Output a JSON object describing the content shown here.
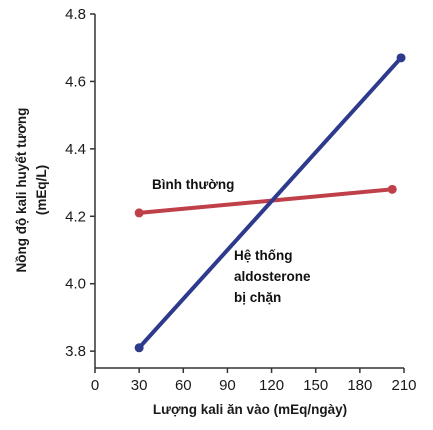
{
  "chart_data": {
    "type": "line",
    "xlabel": "Lượng kali ăn vào (mEq/ngày)",
    "ylabel_line1": "Nồng độ kali huyết tương",
    "ylabel_line2": "(mEq/L)",
    "x_ticks": [
      0,
      30,
      60,
      90,
      120,
      150,
      180,
      210
    ],
    "y_ticks": [
      3.8,
      4.0,
      4.2,
      4.4,
      4.6,
      4.8
    ],
    "y_tick_labels": [
      "3.8",
      "4.0",
      "4.2",
      "4.4",
      "4.6",
      "4.8"
    ],
    "xlim": [
      0,
      210
    ],
    "ylim": [
      3.75,
      4.8
    ],
    "grid": false,
    "series": [
      {
        "name": "Bình thường",
        "color": "#c0404a",
        "x": [
          30,
          202
        ],
        "y": [
          4.21,
          4.28
        ]
      },
      {
        "name": "Hệ thống aldosterone bị chặn",
        "color": "#2e3a8c",
        "x": [
          30,
          208
        ],
        "y": [
          3.81,
          4.67
        ]
      }
    ],
    "annotations": {
      "normal": "Bình thường",
      "blocked_line1": "Hệ thống",
      "blocked_line2": "aldosterone",
      "blocked_line3": "bị chặn"
    }
  }
}
